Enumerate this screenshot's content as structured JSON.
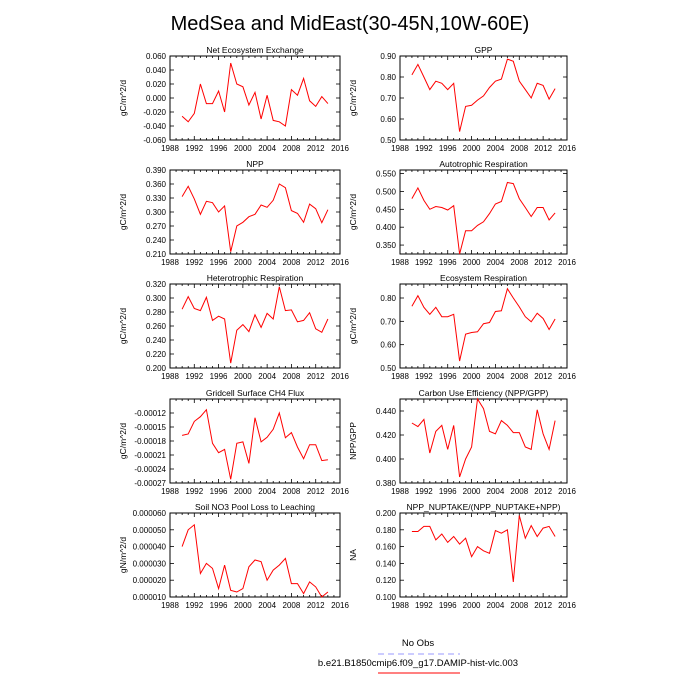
{
  "figure": {
    "title": "MedSea and MidEast(30-45N,10W-60E)",
    "legend": {
      "items": [
        {
          "label": "No Obs",
          "color": "#9999ff",
          "dash": true
        },
        {
          "label": "b.e21.B1850cmip6.f09_g17.DAMIP-hist-vlc.003",
          "color": "#ff0000",
          "dash": false
        }
      ]
    }
  },
  "chart_data": [
    {
      "type": "line",
      "title": "Net Ecosystem Exchange",
      "ylabel": "gC/m^2/d",
      "xlim": [
        1988,
        2016
      ],
      "ylim": [
        -0.06,
        0.06
      ],
      "xticks": [
        1988,
        1992,
        1996,
        2000,
        2004,
        2008,
        2012,
        2016
      ],
      "yticks": [
        "-0.060",
        "-0.040",
        "-0.020",
        "0.000",
        "0.020",
        "0.040",
        "0.060"
      ],
      "ytick_values": [
        -0.06,
        -0.04,
        -0.02,
        0.0,
        0.02,
        0.04,
        0.06
      ],
      "color": "#ff0000",
      "x": [
        1990,
        1991,
        1992,
        1993,
        1994,
        1995,
        1996,
        1997,
        1998,
        1999,
        2000,
        2001,
        2002,
        2003,
        2004,
        2005,
        2006,
        2007,
        2008,
        2009,
        2010,
        2011,
        2012,
        2013,
        2014
      ],
      "y": [
        -0.026,
        -0.034,
        -0.022,
        0.02,
        -0.008,
        -0.008,
        0.01,
        -0.02,
        0.05,
        0.02,
        0.016,
        -0.01,
        0.008,
        -0.03,
        0.004,
        -0.032,
        -0.034,
        -0.04,
        0.012,
        0.004,
        0.028,
        -0.004,
        -0.012,
        0.002,
        -0.008
      ]
    },
    {
      "type": "line",
      "title": "GPP",
      "ylabel": "gC/m^2/d",
      "xlim": [
        1988,
        2016
      ],
      "ylim": [
        0.5,
        0.9
      ],
      "xticks": [
        1988,
        1992,
        1996,
        2000,
        2004,
        2008,
        2012,
        2016
      ],
      "yticks": [
        "0.50",
        "0.60",
        "0.70",
        "0.80",
        "0.90"
      ],
      "ytick_values": [
        0.5,
        0.6,
        0.7,
        0.8,
        0.9
      ],
      "color": "#ff0000",
      "x": [
        1990,
        1991,
        1992,
        1993,
        1994,
        1995,
        1996,
        1997,
        1998,
        1999,
        2000,
        2001,
        2002,
        2003,
        2004,
        2005,
        2006,
        2007,
        2008,
        2009,
        2010,
        2011,
        2012,
        2013,
        2014
      ],
      "y": [
        0.81,
        0.86,
        0.8,
        0.74,
        0.78,
        0.77,
        0.74,
        0.77,
        0.54,
        0.66,
        0.665,
        0.69,
        0.71,
        0.75,
        0.78,
        0.79,
        0.885,
        0.875,
        0.78,
        0.74,
        0.7,
        0.77,
        0.76,
        0.695,
        0.745
      ]
    },
    {
      "type": "line",
      "title": "NPP",
      "ylabel": "gC/m^2/d",
      "xlim": [
        1988,
        2016
      ],
      "ylim": [
        0.21,
        0.39
      ],
      "xticks": [
        1988,
        1992,
        1996,
        2000,
        2004,
        2008,
        2012,
        2016
      ],
      "yticks": [
        "0.210",
        "0.240",
        "0.270",
        "0.300",
        "0.330",
        "0.360",
        "0.390"
      ],
      "ytick_values": [
        0.21,
        0.24,
        0.27,
        0.3,
        0.33,
        0.36,
        0.39
      ],
      "color": "#ff0000",
      "x": [
        1990,
        1991,
        1992,
        1993,
        1994,
        1995,
        1996,
        1997,
        1998,
        1999,
        2000,
        2001,
        2002,
        2003,
        2004,
        2005,
        2006,
        2007,
        2008,
        2009,
        2010,
        2011,
        2012,
        2013,
        2014
      ],
      "y": [
        0.333,
        0.355,
        0.328,
        0.295,
        0.323,
        0.32,
        0.3,
        0.313,
        0.215,
        0.27,
        0.278,
        0.29,
        0.295,
        0.315,
        0.31,
        0.325,
        0.36,
        0.352,
        0.303,
        0.297,
        0.278,
        0.317,
        0.307,
        0.277,
        0.305
      ]
    },
    {
      "type": "line",
      "title": "Autotrophic Respiration",
      "ylabel": "gC/m^2/d",
      "xlim": [
        1988,
        2016
      ],
      "ylim": [
        0.325,
        0.56
      ],
      "xticks": [
        1988,
        1992,
        1996,
        2000,
        2004,
        2008,
        2012,
        2016
      ],
      "yticks": [
        "0.350",
        "0.400",
        "0.450",
        "0.500",
        "0.550"
      ],
      "ytick_values": [
        0.35,
        0.4,
        0.45,
        0.5,
        0.55
      ],
      "color": "#ff0000",
      "x": [
        1990,
        1991,
        1992,
        1993,
        1994,
        1995,
        1996,
        1997,
        1998,
        1999,
        2000,
        2001,
        2002,
        2003,
        2004,
        2005,
        2006,
        2007,
        2008,
        2009,
        2010,
        2011,
        2012,
        2013,
        2014
      ],
      "y": [
        0.48,
        0.51,
        0.475,
        0.45,
        0.458,
        0.455,
        0.448,
        0.46,
        0.325,
        0.39,
        0.39,
        0.405,
        0.415,
        0.438,
        0.465,
        0.472,
        0.525,
        0.522,
        0.48,
        0.455,
        0.43,
        0.455,
        0.455,
        0.42,
        0.44
      ]
    },
    {
      "type": "line",
      "title": "Heterotrophic Respiration",
      "ylabel": "gC/m^2/d",
      "xlim": [
        1988,
        2016
      ],
      "ylim": [
        0.2,
        0.32
      ],
      "xticks": [
        1988,
        1992,
        1996,
        2000,
        2004,
        2008,
        2012,
        2016
      ],
      "yticks": [
        "0.200",
        "0.220",
        "0.240",
        "0.260",
        "0.280",
        "0.300",
        "0.320"
      ],
      "ytick_values": [
        0.2,
        0.22,
        0.24,
        0.26,
        0.28,
        0.3,
        0.32
      ],
      "color": "#ff0000",
      "x": [
        1990,
        1991,
        1992,
        1993,
        1994,
        1995,
        1996,
        1997,
        1998,
        1999,
        2000,
        2001,
        2002,
        2003,
        2004,
        2005,
        2006,
        2007,
        2008,
        2009,
        2010,
        2011,
        2012,
        2013,
        2014
      ],
      "y": [
        0.284,
        0.302,
        0.285,
        0.282,
        0.301,
        0.268,
        0.274,
        0.27,
        0.207,
        0.254,
        0.262,
        0.252,
        0.276,
        0.258,
        0.278,
        0.27,
        0.316,
        0.282,
        0.283,
        0.266,
        0.268,
        0.279,
        0.256,
        0.251,
        0.27
      ]
    },
    {
      "type": "line",
      "title": "Ecosystem Respiration",
      "ylabel": "gC/m^2/d",
      "xlim": [
        1988,
        2016
      ],
      "ylim": [
        0.5,
        0.86
      ],
      "xticks": [
        1988,
        1992,
        1996,
        2000,
        2004,
        2008,
        2012,
        2016
      ],
      "yticks": [
        "0.50",
        "0.60",
        "0.70",
        "0.80"
      ],
      "ytick_values": [
        0.5,
        0.6,
        0.7,
        0.8
      ],
      "color": "#ff0000",
      "x": [
        1990,
        1991,
        1992,
        1993,
        1994,
        1995,
        1996,
        1997,
        1998,
        1999,
        2000,
        2001,
        2002,
        2003,
        2004,
        2005,
        2006,
        2007,
        2008,
        2009,
        2010,
        2011,
        2012,
        2013,
        2014
      ],
      "y": [
        0.765,
        0.81,
        0.76,
        0.73,
        0.76,
        0.72,
        0.72,
        0.73,
        0.53,
        0.645,
        0.652,
        0.655,
        0.69,
        0.695,
        0.742,
        0.745,
        0.84,
        0.8,
        0.762,
        0.72,
        0.698,
        0.735,
        0.712,
        0.665,
        0.71
      ]
    },
    {
      "type": "line",
      "title": "Gridcell Surface CH4 Flux",
      "ylabel": "gC/m^2/d",
      "xlim": [
        1988,
        2016
      ],
      "ylim": [
        -0.00027,
        -9e-05
      ],
      "xticks": [
        1988,
        1992,
        1996,
        2000,
        2004,
        2008,
        2012,
        2016
      ],
      "yticks": [
        "-0.00012",
        "-0.00015",
        "-0.00018",
        "-0.00021",
        "-0.00024",
        "-0.00027"
      ],
      "ytick_values": [
        -0.00012,
        -0.00015,
        -0.00018,
        -0.00021,
        -0.00024,
        -0.00027
      ],
      "color": "#ff0000",
      "x": [
        1990,
        1991,
        1992,
        1993,
        1994,
        1995,
        1996,
        1997,
        1998,
        1999,
        2000,
        2001,
        2002,
        2003,
        2004,
        2005,
        2006,
        2007,
        2008,
        2009,
        2010,
        2011,
        2012,
        2013,
        2014
      ],
      "y": [
        -0.000168,
        -0.000165,
        -0.000138,
        -0.000128,
        -0.000113,
        -0.000185,
        -0.000205,
        -0.000198,
        -0.000262,
        -0.000185,
        -0.000182,
        -0.000228,
        -0.00013,
        -0.000182,
        -0.000172,
        -0.000155,
        -0.00012,
        -0.000173,
        -0.000162,
        -0.000193,
        -0.000218,
        -0.000188,
        -0.000188,
        -0.000222,
        -0.00022
      ]
    },
    {
      "type": "line",
      "title": "Carbon Use Efficiency (NPP/GPP)",
      "ylabel": "NPP/GPP",
      "xlim": [
        1988,
        2016
      ],
      "ylim": [
        0.38,
        0.45
      ],
      "xticks": [
        1988,
        1992,
        1996,
        2000,
        2004,
        2008,
        2012,
        2016
      ],
      "yticks": [
        "0.380",
        "0.400",
        "0.420",
        "0.440"
      ],
      "ytick_values": [
        0.38,
        0.4,
        0.42,
        0.44
      ],
      "color": "#ff0000",
      "x": [
        1990,
        1991,
        1992,
        1993,
        1994,
        1995,
        1996,
        1997,
        1998,
        1999,
        2000,
        2001,
        2002,
        2003,
        2004,
        2005,
        2006,
        2007,
        2008,
        2009,
        2010,
        2011,
        2012,
        2013,
        2014
      ],
      "y": [
        0.43,
        0.427,
        0.433,
        0.405,
        0.423,
        0.428,
        0.408,
        0.428,
        0.385,
        0.4,
        0.41,
        0.45,
        0.442,
        0.423,
        0.421,
        0.432,
        0.428,
        0.422,
        0.422,
        0.41,
        0.408,
        0.441,
        0.421,
        0.408,
        0.432
      ]
    },
    {
      "type": "line",
      "title": "Soil NO3 Pool Loss to Leaching",
      "ylabel": "gN/m^2/d",
      "xlim": [
        1988,
        2016
      ],
      "ylim": [
        1e-05,
        6e-05
      ],
      "xticks": [
        1988,
        1992,
        1996,
        2000,
        2004,
        2008,
        2012,
        2016
      ],
      "yticks": [
        "0.000010",
        "0.000020",
        "0.000030",
        "0.000040",
        "0.000050",
        "0.000060"
      ],
      "ytick_values": [
        1e-05,
        2e-05,
        3e-05,
        4e-05,
        5e-05,
        6e-05
      ],
      "color": "#ff0000",
      "x": [
        1990,
        1991,
        1992,
        1993,
        1994,
        1995,
        1996,
        1997,
        1998,
        1999,
        2000,
        2001,
        2002,
        2003,
        2004,
        2005,
        2006,
        2007,
        2008,
        2009,
        2010,
        2011,
        2012,
        2013,
        2014
      ],
      "y": [
        4e-05,
        5e-05,
        5.3e-05,
        2.4e-05,
        3e-05,
        2.7e-05,
        1.5e-05,
        2.9e-05,
        1.4e-05,
        1.3e-05,
        1.5e-05,
        2.8e-05,
        3.2e-05,
        3.1e-05,
        2e-05,
        2.6e-05,
        2.9e-05,
        3.3e-05,
        1.8e-05,
        1.8e-05,
        1.2e-05,
        1.9e-05,
        1.6e-05,
        1e-05,
        1.3e-05
      ]
    },
    {
      "type": "line",
      "title": "NPP_NUPTAKE/(NPP_NUPTAKE+NPP)",
      "ylabel": "NA",
      "xlim": [
        1988,
        2016
      ],
      "ylim": [
        0.1,
        0.2
      ],
      "xticks": [
        1988,
        1992,
        1996,
        2000,
        2004,
        2008,
        2012,
        2016
      ],
      "yticks": [
        "0.100",
        "0.120",
        "0.140",
        "0.160",
        "0.180",
        "0.200"
      ],
      "ytick_values": [
        0.1,
        0.12,
        0.14,
        0.16,
        0.18,
        0.2
      ],
      "color": "#ff0000",
      "x": [
        1990,
        1991,
        1992,
        1993,
        1994,
        1995,
        1996,
        1997,
        1998,
        1999,
        2000,
        2001,
        2002,
        2003,
        2004,
        2005,
        2006,
        2007,
        2008,
        2009,
        2010,
        2011,
        2012,
        2013,
        2014
      ],
      "y": [
        0.178,
        0.178,
        0.184,
        0.184,
        0.168,
        0.175,
        0.165,
        0.172,
        0.163,
        0.17,
        0.148,
        0.16,
        0.155,
        0.152,
        0.179,
        0.176,
        0.18,
        0.118,
        0.197,
        0.17,
        0.185,
        0.172,
        0.182,
        0.184,
        0.172
      ]
    }
  ]
}
